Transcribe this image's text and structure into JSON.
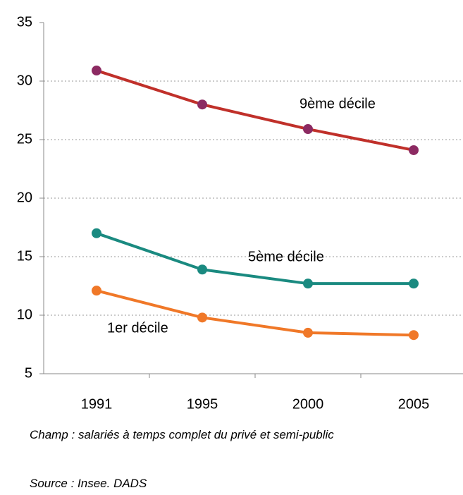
{
  "chart_data": {
    "type": "line",
    "categories": [
      "1991",
      "1995",
      "2000",
      "2005"
    ],
    "series": [
      {
        "name": "9ème décile",
        "color": "#c0302a",
        "marker_color": "#8c2a62",
        "values": [
          30.9,
          28,
          25.9,
          24.1
        ]
      },
      {
        "name": "5ème décile",
        "color": "#1a8a80",
        "values": [
          17,
          13.9,
          12.7,
          12.7
        ]
      },
      {
        "name": "1er décile",
        "color": "#f07828",
        "values": [
          12.1,
          9.8,
          8.5,
          8.3
        ]
      }
    ],
    "ylim": [
      5,
      35
    ],
    "yticks": [
      5,
      10,
      15,
      20,
      25,
      30,
      35
    ],
    "grid": true,
    "notes": [
      "Champ : salariés à temps complet du privé et semi-public",
      "Source : Insee. DADS"
    ]
  }
}
